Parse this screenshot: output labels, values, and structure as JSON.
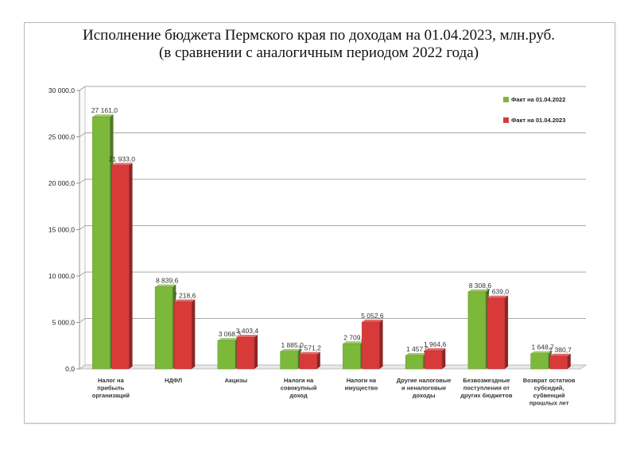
{
  "chart_data": {
    "type": "bar",
    "title": "Исполнение бюджета Пермского края по доходам на 01.04.2023, млн.руб.",
    "subtitle": "(в сравнении с аналогичным периодом 2022 года)",
    "categories": [
      [
        "Налог на",
        "прибыль",
        "организаций"
      ],
      [
        "НДФЛ"
      ],
      [
        "Акцизы"
      ],
      [
        "Налоги на",
        "совокупный",
        "доход"
      ],
      [
        "Налоги на",
        "имущество"
      ],
      [
        "Другие налоговые",
        "и неналоговые",
        "доходы"
      ],
      [
        "Безвозмездные",
        "поступления от",
        "других бюджетов"
      ],
      [
        "Возврат остатков",
        "субсидий,",
        "субвенций",
        "прошлых лет"
      ]
    ],
    "series": [
      {
        "name": "Факт на 01.04.2022",
        "color": "#7cb83a",
        "values": [
          27161.0,
          8839.6,
          3068.3,
          1885.0,
          2709.0,
          1457.9,
          8308.6,
          1648.7
        ],
        "labels": [
          "27 161,0",
          "8 839,6",
          "3 068,3",
          "1 885,0",
          "2 709,0",
          "1 457,9",
          "8 308,6",
          "1 648,7"
        ]
      },
      {
        "name": "Факт на 01.04.2023",
        "color": "#d83a3a",
        "values": [
          21933.0,
          7218.6,
          3403.4,
          1571.2,
          5052.6,
          1964.6,
          7639.0,
          1380.7
        ],
        "labels": [
          "21 933,0",
          "7 218,6",
          "3 403,4",
          "1 571,2",
          "5 052,6",
          "1 964,6",
          "7 639,0",
          "1 380,7"
        ]
      }
    ],
    "yticks": [
      "0,0",
      "5 000,0",
      "10 000,0",
      "15 000,0",
      "20 000,0",
      "25 000,0",
      "30 000,0"
    ],
    "ylim": [
      0,
      30000
    ],
    "grid": true,
    "legend": "top-right"
  }
}
